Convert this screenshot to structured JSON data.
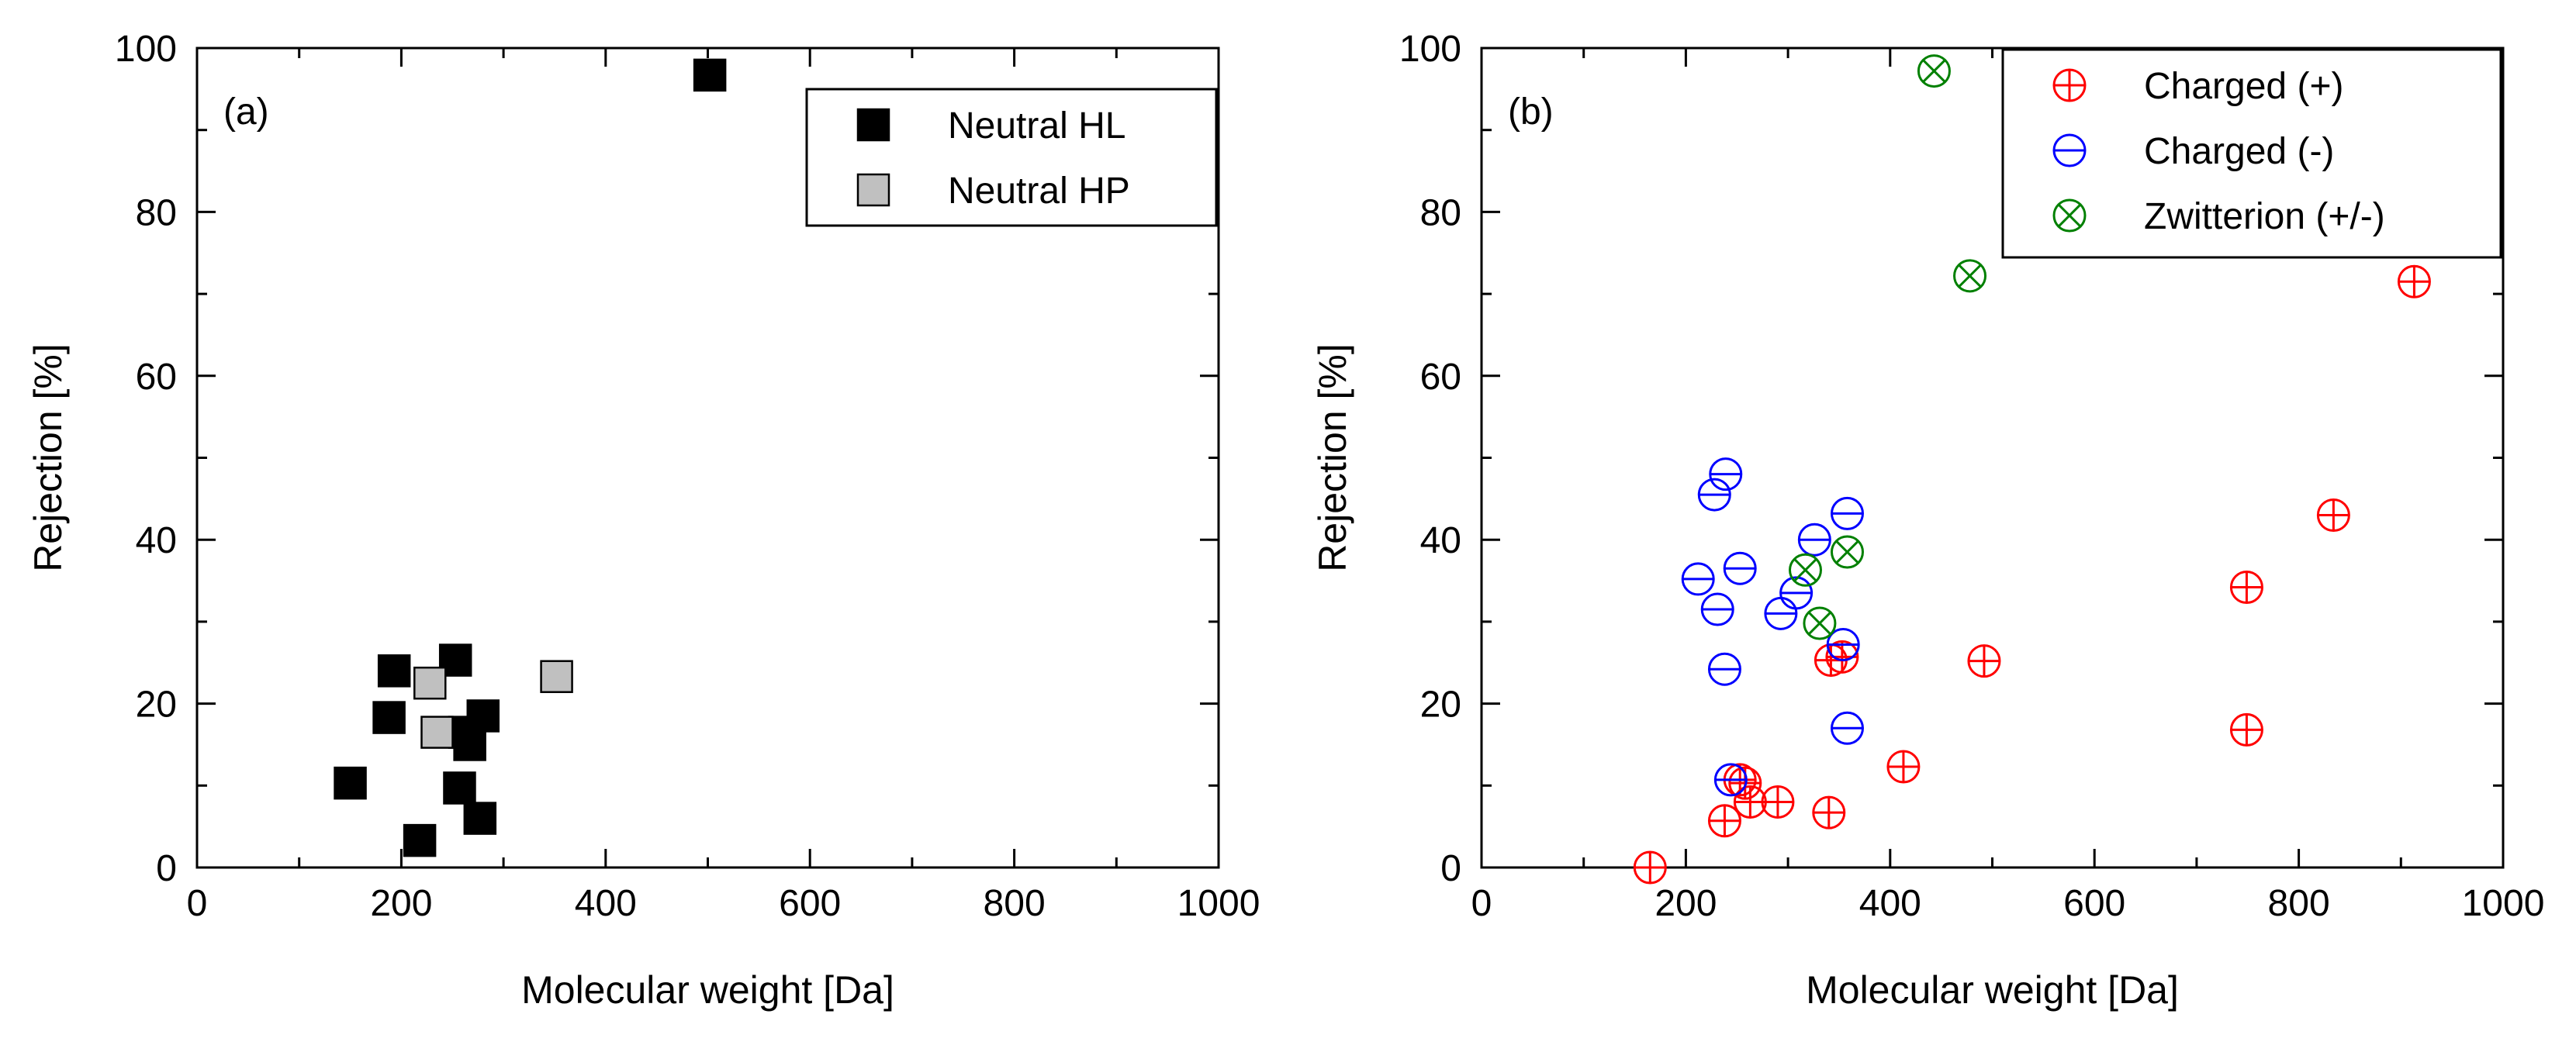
{
  "chart_data": [
    {
      "type": "scatter",
      "panel_label": "(a)",
      "xlabel": "Molecular weight [Da]",
      "ylabel": "Rejection [%]",
      "xlim": [
        0,
        1000
      ],
      "ylim": [
        0,
        100
      ],
      "xticks": [
        0,
        200,
        400,
        600,
        800,
        1000
      ],
      "yticks": [
        0,
        20,
        40,
        60,
        80,
        100
      ],
      "grid": false,
      "legend_position": "top-right",
      "series": [
        {
          "name": "Neutral HL",
          "marker": "square",
          "color": "#000000",
          "points": [
            [
              150,
              10.3
            ],
            [
              188,
              18.3
            ],
            [
              193,
              24
            ],
            [
              218,
              3.3
            ],
            [
              253,
              25.3
            ],
            [
              257,
              9.7
            ],
            [
              262,
              16.5
            ],
            [
              267,
              15
            ],
            [
              277,
              6
            ],
            [
              280,
              18.5
            ],
            [
              502,
              96.7
            ]
          ]
        },
        {
          "name": "Neutral HP",
          "marker": "square",
          "color": "#c0c0c0",
          "points": [
            [
              228,
              22.5
            ],
            [
              235,
              16.5
            ],
            [
              352,
              23.3
            ]
          ]
        }
      ]
    },
    {
      "type": "scatter",
      "panel_label": "(b)",
      "xlabel": "Molecular weight [Da]",
      "ylabel": "Rejection [%]",
      "xlim": [
        0,
        1000
      ],
      "ylim": [
        0,
        100
      ],
      "xticks": [
        0,
        200,
        400,
        600,
        800,
        1000
      ],
      "yticks": [
        0,
        20,
        40,
        60,
        80,
        100
      ],
      "grid": false,
      "legend_position": "top-right",
      "series": [
        {
          "name": "Charged (+)",
          "marker": "circle-plus",
          "color": "#ff0000",
          "points": [
            [
              165,
              0
            ],
            [
              238,
              5.7
            ],
            [
              253,
              10.7
            ],
            [
              258,
              10.3
            ],
            [
              263,
              8
            ],
            [
              290,
              8
            ],
            [
              340,
              6.7
            ],
            [
              342,
              25.3
            ],
            [
              353,
              25.7
            ],
            [
              413,
              12.3
            ],
            [
              492,
              25.2
            ],
            [
              749,
              34.2
            ],
            [
              749,
              16.8
            ],
            [
              834,
              43
            ],
            [
              913,
              71.5
            ]
          ]
        },
        {
          "name": "Charged (-)",
          "marker": "circle-minus",
          "color": "#0000ff",
          "points": [
            [
              212,
              35.2
            ],
            [
              228,
              45.5
            ],
            [
              231,
              31.5
            ],
            [
              238,
              24.2
            ],
            [
              239,
              48
            ],
            [
              244,
              10.7
            ],
            [
              253,
              36.5
            ],
            [
              293,
              31
            ],
            [
              308,
              33.5
            ],
            [
              326,
              40
            ],
            [
              354,
              27.2
            ],
            [
              358,
              43.2
            ],
            [
              358,
              17
            ]
          ]
        },
        {
          "name": "Zwitterion (+/-)",
          "marker": "circle-x",
          "color": "#008000",
          "points": [
            [
              317,
              36.3
            ],
            [
              331,
              29.8
            ],
            [
              358,
              38.5
            ],
            [
              443,
              97.2
            ],
            [
              478,
              72.2
            ]
          ]
        }
      ]
    }
  ]
}
